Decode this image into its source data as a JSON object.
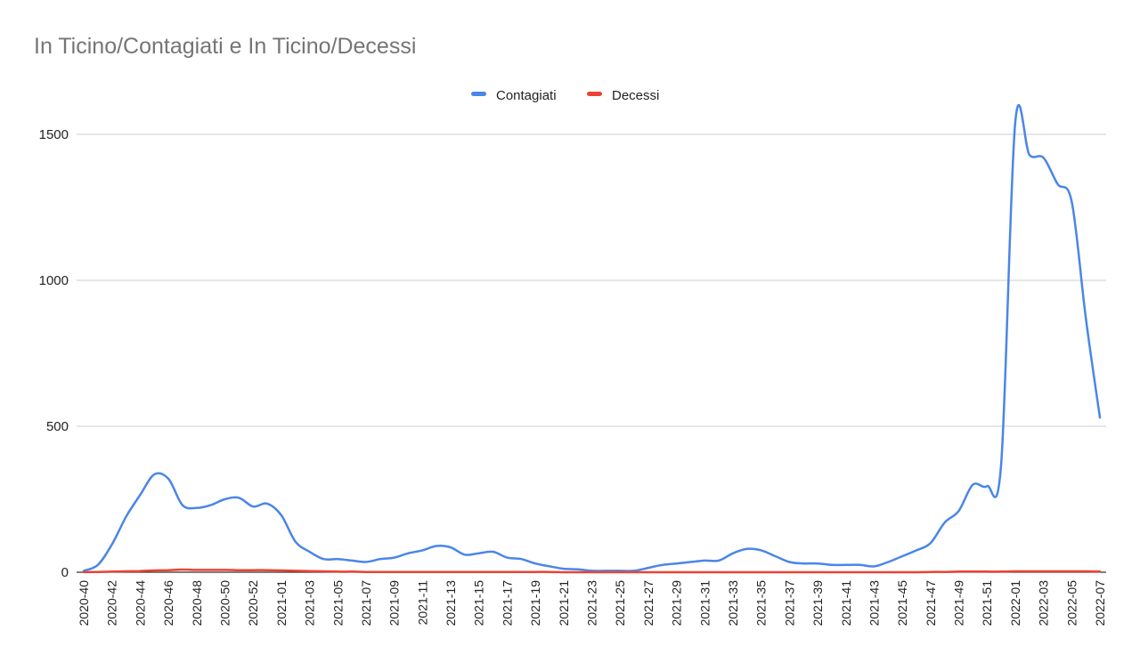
{
  "chart_data": {
    "type": "line",
    "title": "In Ticino/Contagiati e In Ticino/Decessi",
    "xlabel": "",
    "ylabel": "",
    "ylim": [
      0,
      1500
    ],
    "yticks": [
      0,
      500,
      1000,
      1500
    ],
    "grid": true,
    "legend_position": "top-center",
    "x": [
      "2020-40",
      "2020-41",
      "2020-42",
      "2020-43",
      "2020-44",
      "2020-45",
      "2020-46",
      "2020-47",
      "2020-48",
      "2020-49",
      "2020-50",
      "2020-51",
      "2020-52",
      "2020-53",
      "2021-01",
      "2021-02",
      "2021-03",
      "2021-04",
      "2021-05",
      "2021-06",
      "2021-07",
      "2021-08",
      "2021-09",
      "2021-10",
      "2021-11",
      "2021-12",
      "2021-13",
      "2021-14",
      "2021-15",
      "2021-16",
      "2021-17",
      "2021-18",
      "2021-19",
      "2021-20",
      "2021-21",
      "2021-22",
      "2021-23",
      "2021-24",
      "2021-25",
      "2021-26",
      "2021-27",
      "2021-28",
      "2021-29",
      "2021-30",
      "2021-31",
      "2021-32",
      "2021-33",
      "2021-34",
      "2021-35",
      "2021-36",
      "2021-37",
      "2021-38",
      "2021-39",
      "2021-40",
      "2021-41",
      "2021-42",
      "2021-43",
      "2021-44",
      "2021-45",
      "2021-46",
      "2021-47",
      "2021-48",
      "2021-49",
      "2021-50",
      "2021-51",
      "2021-52",
      "2022-01",
      "2022-02",
      "2022-03",
      "2022-04",
      "2022-05",
      "2022-06",
      "2022-07"
    ],
    "x_tick_labels": [
      "2020-40",
      "2020-42",
      "2020-44",
      "2020-46",
      "2020-48",
      "2020-50",
      "2020-52",
      "2021-01",
      "2021-03",
      "2021-05",
      "2021-07",
      "2021-09",
      "2021-11",
      "2021-13",
      "2021-15",
      "2021-17",
      "2021-19",
      "2021-21",
      "2021-23",
      "2021-25",
      "2021-27",
      "2021-29",
      "2021-31",
      "2021-33",
      "2021-35",
      "2021-37",
      "2021-39",
      "2021-41",
      "2021-43",
      "2021-45",
      "2021-47",
      "2021-49",
      "2021-51",
      "2022-01",
      "2022-03",
      "2022-05",
      "2022-07"
    ],
    "series": [
      {
        "name": "Contagiati",
        "color": "#4a86e8",
        "values": [
          5,
          25,
          95,
          190,
          265,
          335,
          320,
          230,
          220,
          230,
          250,
          255,
          225,
          235,
          195,
          105,
          70,
          45,
          45,
          40,
          35,
          45,
          50,
          65,
          75,
          90,
          85,
          60,
          65,
          70,
          50,
          45,
          30,
          20,
          12,
          10,
          5,
          5,
          5,
          5,
          15,
          25,
          30,
          35,
          40,
          40,
          65,
          80,
          75,
          55,
          35,
          30,
          30,
          25,
          25,
          25,
          20,
          35,
          55,
          75,
          100,
          170,
          210,
          300,
          295,
          370,
          1540,
          1430,
          1420,
          1330,
          1270,
          870,
          530
        ]
      },
      {
        "name": "Decessi",
        "color": "#ea4335",
        "values": [
          0,
          1,
          2,
          3,
          4,
          6,
          7,
          9,
          8,
          8,
          8,
          7,
          7,
          7,
          6,
          5,
          4,
          3,
          2,
          2,
          1,
          1,
          1,
          1,
          1,
          1,
          1,
          1,
          1,
          1,
          1,
          1,
          1,
          1,
          0,
          0,
          0,
          0,
          0,
          0,
          0,
          0,
          0,
          0,
          0,
          0,
          0,
          0,
          0,
          0,
          0,
          0,
          0,
          0,
          0,
          0,
          0,
          0,
          0,
          0,
          1,
          1,
          2,
          2,
          2,
          2,
          3,
          3,
          3,
          3,
          3,
          3,
          2
        ]
      }
    ]
  }
}
